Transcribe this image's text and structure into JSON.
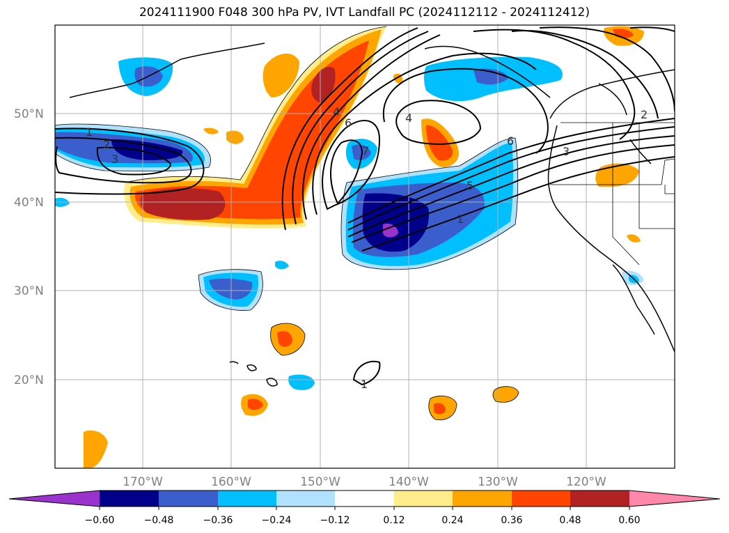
{
  "title": "2024111900 F048 300 hPa PV, IVT Landfall PC (2024112112 - 2024112412)",
  "lat_labels": [
    "50°N",
    "40°N",
    "30°N",
    "20°N"
  ],
  "lon_labels": [
    "170°W",
    "160°W",
    "150°W",
    "140°W",
    "130°W",
    "120°W"
  ],
  "colorbar": {
    "colors": [
      "#9933cc",
      "#00008b",
      "#3a5fcd",
      "#00bfff",
      "#b0e2ff",
      "#ffffff",
      "#ffec8b",
      "#ffa500",
      "#ff4500",
      "#b22222",
      "#ff88aa"
    ],
    "tick_labels": [
      "−0.60",
      "−0.48",
      "−0.36",
      "−0.24",
      "−0.12",
      "0.12",
      "0.24",
      "0.36",
      "0.48",
      "0.60"
    ]
  },
  "contour_labels": [
    "1",
    "2",
    "3",
    "4",
    "6",
    "7",
    "4",
    "5",
    "1",
    "6",
    "3",
    "2",
    "1"
  ]
}
